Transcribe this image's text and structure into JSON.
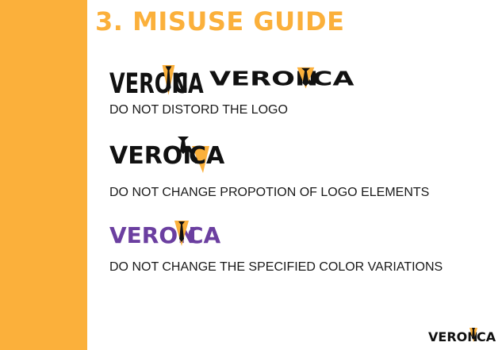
{
  "page": {
    "title": "3. MISUSE GUIDE",
    "accent_color": "#fbb03b",
    "text_color": "#1a1a1a",
    "misuse_color": "#6b3fa0"
  },
  "logo": {
    "before": "VERON",
    "after": "CA",
    "description": "wordmark VERONICA with the letter I drawn as a black tie on a yellow triangle"
  },
  "rules": [
    {
      "caption": "DO NOT DISTORD THE LOGO"
    },
    {
      "caption": "DO NOT CHANGE PROPOTION OF LOGO ELEMENTS"
    },
    {
      "caption": "DO NOT CHANGE THE SPECIFIED COLOR VARIATIONS"
    }
  ]
}
